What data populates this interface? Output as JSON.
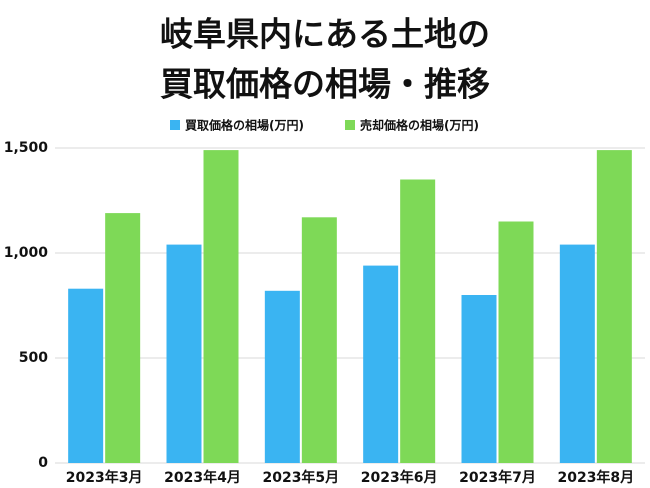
{
  "chart_data": {
    "type": "bar",
    "title": [
      "岐阜県内にある土地の",
      "買取価格の相場・推移"
    ],
    "categories": [
      "2023年3月",
      "2023年4月",
      "2023年5月",
      "2023年6月",
      "2023年7月",
      "2023年8月"
    ],
    "series": [
      {
        "name": "買取価格の相場(万円)",
        "color": "#3ab4f2",
        "values": [
          830,
          1040,
          820,
          940,
          800,
          1040
        ]
      },
      {
        "name": "売却価格の相場(万円)",
        "color": "#7ed957",
        "values": [
          1190,
          1490,
          1170,
          1350,
          1150,
          1490
        ]
      }
    ],
    "ylim": [
      0,
      1500
    ],
    "yticks": [
      0,
      500,
      {
        "value": 1000,
        "label": "1,000"
      },
      {
        "value": 1500,
        "label": "1,500"
      }
    ],
    "grid": true,
    "legend": "top"
  }
}
